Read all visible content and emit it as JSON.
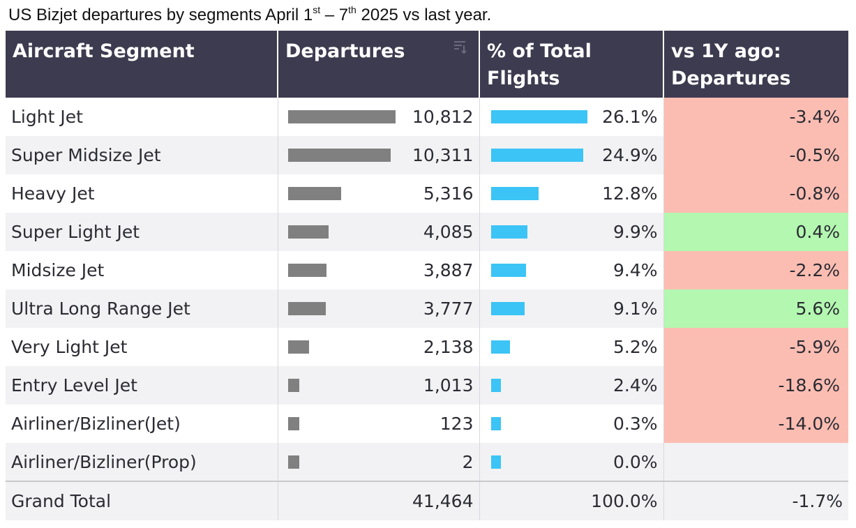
{
  "title": {
    "text_before_1": "US Bizjet departures by segments April 1",
    "sup_1": "st",
    "text_between": " – 7",
    "sup_2": "th",
    "text_after": " 2025 vs last year."
  },
  "chart_data": {
    "type": "table",
    "columns": [
      "Aircraft Segment",
      "Departures",
      "% of Total Flights",
      "vs 1Y ago: Departures"
    ],
    "rows": [
      {
        "segment": "Light Jet",
        "departures": 10812,
        "departures_label": "10,812",
        "pct": 26.1,
        "pct_label": "26.1%",
        "yoy": -3.4,
        "yoy_label": "-3.4%"
      },
      {
        "segment": "Super Midsize Jet",
        "departures": 10311,
        "departures_label": "10,311",
        "pct": 24.9,
        "pct_label": "24.9%",
        "yoy": -0.5,
        "yoy_label": "-0.5%"
      },
      {
        "segment": "Heavy Jet",
        "departures": 5316,
        "departures_label": "5,316",
        "pct": 12.8,
        "pct_label": "12.8%",
        "yoy": -0.8,
        "yoy_label": "-0.8%"
      },
      {
        "segment": "Super Light Jet",
        "departures": 4085,
        "departures_label": "4,085",
        "pct": 9.9,
        "pct_label": "9.9%",
        "yoy": 0.4,
        "yoy_label": "0.4%"
      },
      {
        "segment": "Midsize Jet",
        "departures": 3887,
        "departures_label": "3,887",
        "pct": 9.4,
        "pct_label": "9.4%",
        "yoy": -2.2,
        "yoy_label": "-2.2%"
      },
      {
        "segment": "Ultra Long Range Jet",
        "departures": 3777,
        "departures_label": "3,777",
        "pct": 9.1,
        "pct_label": "9.1%",
        "yoy": 5.6,
        "yoy_label": "5.6%"
      },
      {
        "segment": "Very Light Jet",
        "departures": 2138,
        "departures_label": "2,138",
        "pct": 5.2,
        "pct_label": "5.2%",
        "yoy": -5.9,
        "yoy_label": "-5.9%"
      },
      {
        "segment": "Entry Level Jet",
        "departures": 1013,
        "departures_label": "1,013",
        "pct": 2.4,
        "pct_label": "2.4%",
        "yoy": -18.6,
        "yoy_label": "-18.6%"
      },
      {
        "segment": "Airliner/Bizliner(Jet)",
        "departures": 123,
        "departures_label": "123",
        "pct": 0.3,
        "pct_label": "0.3%",
        "yoy": -14.0,
        "yoy_label": "-14.0%"
      },
      {
        "segment": "Airliner/Bizliner(Prop)",
        "departures": 2,
        "departures_label": "2",
        "pct": 0.0,
        "pct_label": "0.0%",
        "yoy": null,
        "yoy_label": ""
      }
    ],
    "total": {
      "label": "Grand Total",
      "departures_label": "41,464",
      "pct_label": "100.0%",
      "yoy_label": "-1.7%"
    }
  },
  "header": {
    "col1": "Aircraft Segment",
    "col2": "Departures",
    "col3": "% of Total Flights",
    "col4": "vs 1Y ago: Departures",
    "sort_icon": "sort-descending-icon"
  },
  "colors": {
    "header_bg": "#3d3b4f",
    "departures_bar": "#808080",
    "pct_bar": "#3bc4f5",
    "negative_bg": "#fbbdb2",
    "positive_bg": "#b3f7b0"
  }
}
